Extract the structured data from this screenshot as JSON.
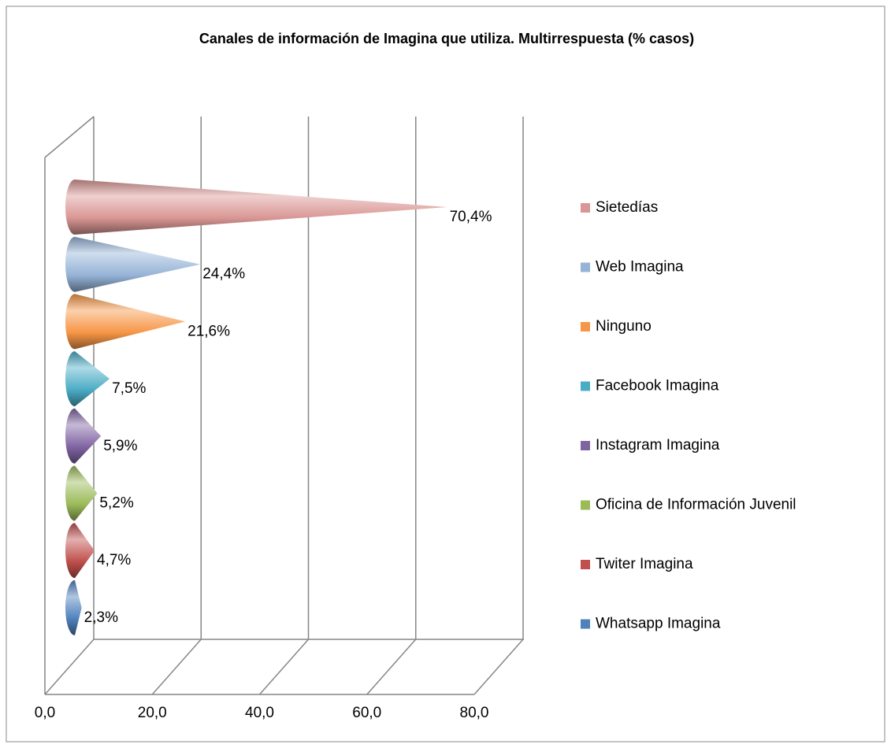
{
  "chart_data": {
    "type": "cone-bar",
    "title": "Canales de información de Imagina que utiliza. Multirrespuesta (% casos)",
    "categories": [
      "Sietedías",
      "Web Imagina",
      "Ninguno",
      "Facebook Imagina",
      "Instagram Imagina",
      "Oficina de Información Juvenil",
      "Twiter Imagina",
      "Whatsapp Imagina"
    ],
    "values": [
      70.4,
      24.4,
      21.6,
      7.5,
      5.9,
      5.2,
      4.7,
      2.3
    ],
    "value_labels": [
      "70,4%",
      "24,4%",
      "21,6%",
      "7,5%",
      "5,9%",
      "5,2%",
      "4,7%",
      "2,3%"
    ],
    "colors": [
      "#d99694",
      "#95b3d7",
      "#f79646",
      "#4bacc6",
      "#8064a2",
      "#9bbb59",
      "#c0504d",
      "#4f81bd"
    ],
    "xlim": [
      0,
      80
    ],
    "xticks": [
      {
        "value": 0,
        "label": "0,0"
      },
      {
        "value": 20,
        "label": "20,0"
      },
      {
        "value": 40,
        "label": "40,0"
      },
      {
        "value": 60,
        "label": "60,0"
      },
      {
        "value": 80,
        "label": "80,0"
      }
    ],
    "grid": true,
    "legend": "right"
  }
}
